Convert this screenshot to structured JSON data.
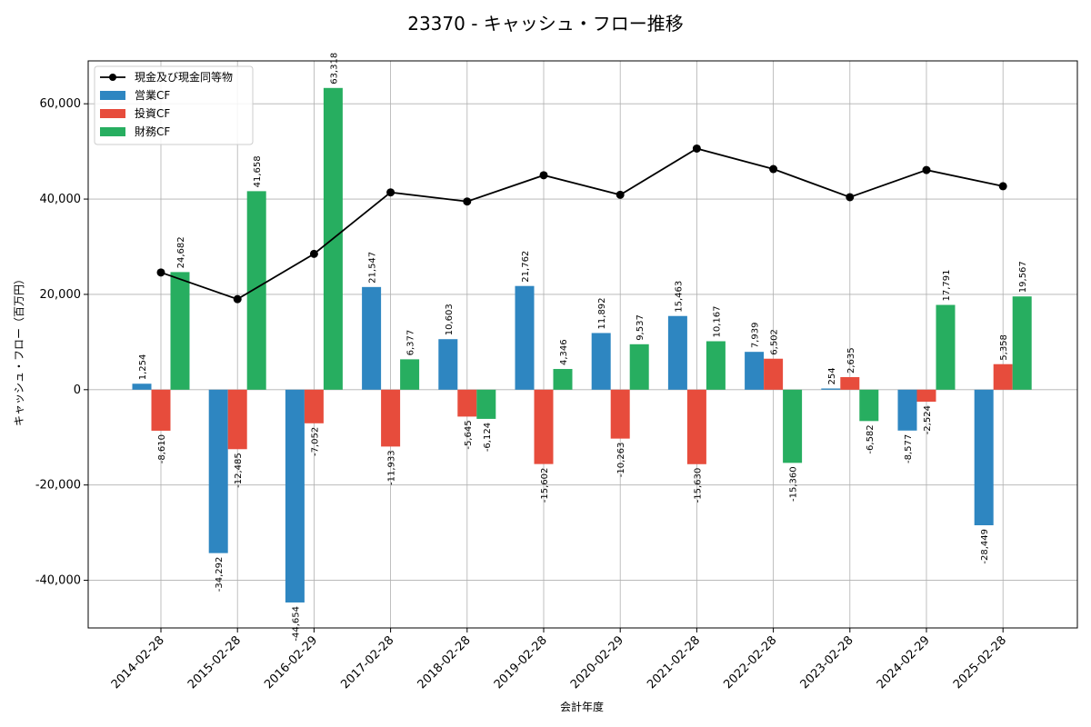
{
  "chart_data": {
    "type": "bar",
    "title": "23370 - キャッシュ・フロー推移",
    "xlabel": "会計年度",
    "ylabel": "キャッシュ・フロー（百万円）",
    "categories": [
      "2014-02-28",
      "2015-02-28",
      "2016-02-29",
      "2017-02-28",
      "2018-02-28",
      "2019-02-28",
      "2020-02-29",
      "2021-02-28",
      "2022-02-28",
      "2023-02-28",
      "2024-02-29",
      "2025-02-28"
    ],
    "ylim": [
      -50000,
      69000
    ],
    "yticks": [
      -40000,
      -20000,
      0,
      20000,
      40000,
      60000
    ],
    "ytick_labels": [
      "-40,000",
      "-20,000",
      "0",
      "20,000",
      "40,000",
      "60,000"
    ],
    "grid": true,
    "legend_position": "top-left",
    "series": [
      {
        "name": "営業CF",
        "kind": "bar",
        "color": "#2e86c1",
        "values": [
          1254,
          -34292,
          -44654,
          21547,
          10603,
          21762,
          11892,
          15463,
          7939,
          254,
          -8577,
          -28449
        ],
        "labels": [
          "1,254",
          "-34,292",
          "-44,654",
          "21,547",
          "10,603",
          "21,762",
          "11,892",
          "15,463",
          "7,939",
          "254",
          "-8,577",
          "-28,449"
        ]
      },
      {
        "name": "投資CF",
        "kind": "bar",
        "color": "#e74c3c",
        "values": [
          -8610,
          -12485,
          -7052,
          -11933,
          -5645,
          -15602,
          -10263,
          -15630,
          6502,
          2635,
          -2524,
          5358
        ],
        "labels": [
          "-8,610",
          "-12,485",
          "-7,052",
          "-11,933",
          "-5,645",
          "-15,602",
          "-10,263",
          "-15,630",
          "6,502",
          "2,635",
          "-2,524",
          "5,358"
        ]
      },
      {
        "name": "財務CF",
        "kind": "bar",
        "color": "#27ae60",
        "values": [
          24682,
          41658,
          63318,
          6377,
          -6124,
          4346,
          9537,
          10167,
          -15360,
          -6582,
          17791,
          19567
        ],
        "labels": [
          "24,682",
          "41,658",
          "63,318",
          "6,377",
          "-6,124",
          "4,346",
          "9,537",
          "10,167",
          "-15,360",
          "-6,582",
          "17,791",
          "19,567"
        ]
      },
      {
        "name": "現金及び現金同等物",
        "kind": "line",
        "color": "#000000",
        "values": [
          24600,
          19000,
          28500,
          41400,
          39500,
          45000,
          40900,
          50600,
          46300,
          40400,
          46100,
          42700
        ]
      }
    ]
  }
}
